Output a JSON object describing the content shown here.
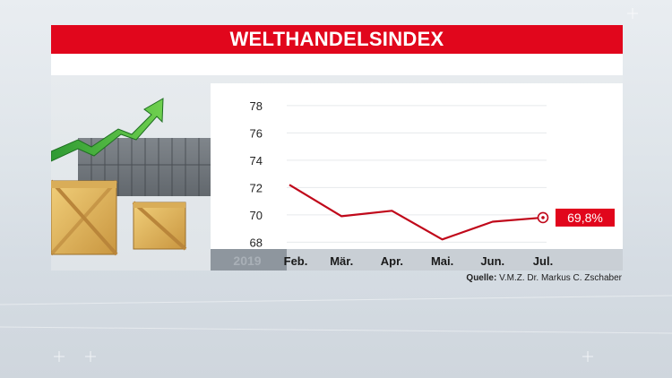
{
  "title": "WELTHANDELSINDEX",
  "source": {
    "label": "Quelle:",
    "text": "V.M.Z. Dr. Markus C. Zschaber"
  },
  "colors": {
    "accent": "#e1061c",
    "line": "#c0081a"
  },
  "chart_data": {
    "type": "line",
    "title": "WELTHANDELSINDEX",
    "year_label": "2019",
    "categories": [
      "Feb.",
      "Mär.",
      "Apr.",
      "Mai.",
      "Jun.",
      "Jul."
    ],
    "series": [
      {
        "values": [
          72.2,
          69.9,
          70.3,
          68.2,
          69.5,
          69.8
        ]
      }
    ],
    "yticks": [
      "78",
      "76",
      "74",
      "72",
      "70",
      "68"
    ],
    "ylim": [
      67.5,
      79.5
    ],
    "grid": true,
    "last_value_label": "69,8%"
  }
}
